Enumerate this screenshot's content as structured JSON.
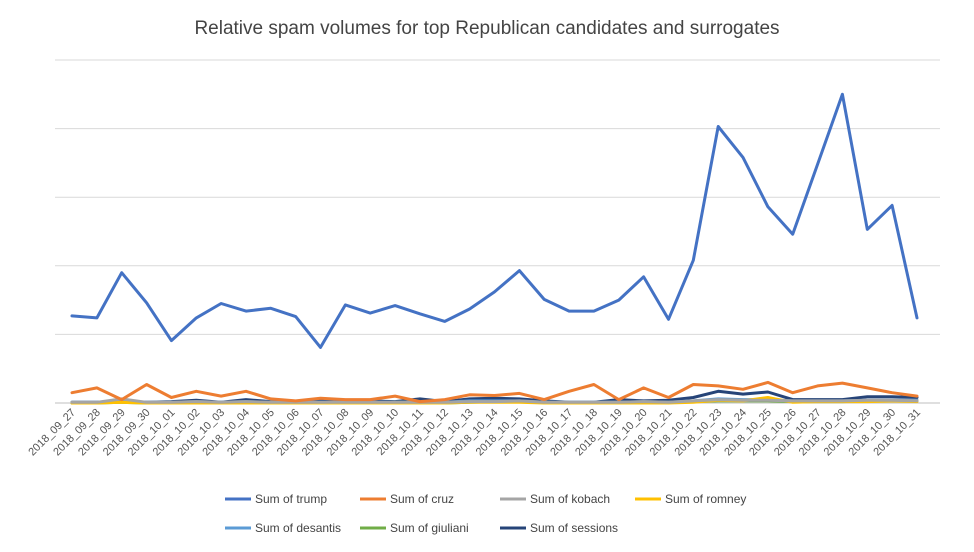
{
  "chart_data": {
    "type": "line",
    "title": "Relative spam volumes for top Republican candidates and surrogates",
    "xlabel": "",
    "ylabel": "",
    "y_tick_labels_shown": false,
    "ylim": [
      0,
      500
    ],
    "grid": true,
    "legend_position": "bottom",
    "categories": [
      "2018_09_27",
      "2018_09_28",
      "2018_09_29",
      "2018_09_30",
      "2018_10_01",
      "2018_10_02",
      "2018_10_03",
      "2018_10_04",
      "2018_10_05",
      "2018_10_06",
      "2018_10_07",
      "2018_10_08",
      "2018_10_09",
      "2018_10_10",
      "2018_10_11",
      "2018_10_12",
      "2018_10_13",
      "2018_10_14",
      "2018_10_15",
      "2018_10_16",
      "2018_10_17",
      "2018_10_18",
      "2018_10_19",
      "2018_10_20",
      "2018_10_21",
      "2018_10_22",
      "2018_10_23",
      "2018_10_24",
      "2018_10_25",
      "2018_10_26",
      "2018_10_27",
      "2018_10_28",
      "2018_10_29",
      "2018_10_30",
      "2018_10_31"
    ],
    "series": [
      {
        "name": "Sum of trump",
        "color": "#4472C4",
        "values": [
          127,
          124,
          190,
          146,
          91,
          124,
          145,
          134,
          138,
          126,
          81,
          143,
          131,
          142,
          130,
          119,
          137,
          162,
          193,
          151,
          134,
          134,
          150,
          184,
          122,
          208,
          403,
          358,
          286,
          246,
          348,
          450,
          253,
          288,
          124
        ]
      },
      {
        "name": "Sum of cruz",
        "color": "#ED7D31",
        "values": [
          15,
          22,
          5,
          27,
          8,
          17,
          10,
          17,
          6,
          3,
          7,
          5,
          5,
          10,
          2,
          5,
          12,
          11,
          14,
          5,
          17,
          27,
          5,
          22,
          8,
          27,
          25,
          20,
          30,
          15,
          25,
          29,
          22,
          15,
          10
        ]
      },
      {
        "name": "Sum of kobach",
        "color": "#A5A5A5",
        "values": [
          1,
          1,
          6,
          1,
          1,
          2,
          1,
          2,
          1,
          1,
          1,
          1,
          1,
          1,
          1,
          1,
          2,
          2,
          3,
          1,
          1,
          1,
          1,
          2,
          1,
          3,
          5,
          4,
          4,
          3,
          3,
          3,
          4,
          4,
          3
        ]
      },
      {
        "name": "Sum of romney",
        "color": "#FFC000",
        "values": [
          0,
          0,
          1,
          0,
          0,
          0,
          0,
          0,
          0,
          0,
          0,
          0,
          0,
          0,
          0,
          0,
          1,
          1,
          1,
          0,
          0,
          0,
          0,
          0,
          0,
          1,
          4,
          3,
          8,
          1,
          2,
          2,
          2,
          3,
          2
        ]
      },
      {
        "name": "Sum of desantis",
        "color": "#5B9BD5",
        "values": [
          1,
          1,
          3,
          1,
          1,
          2,
          1,
          2,
          1,
          1,
          1,
          1,
          1,
          1,
          1,
          1,
          3,
          3,
          3,
          1,
          1,
          1,
          1,
          2,
          1,
          3,
          6,
          5,
          5,
          3,
          3,
          3,
          4,
          4,
          4
        ]
      },
      {
        "name": "Sum of giuliani",
        "color": "#70AD47",
        "values": [
          0,
          0,
          1,
          0,
          0,
          1,
          0,
          1,
          0,
          0,
          0,
          0,
          0,
          1,
          1,
          0,
          1,
          2,
          2,
          1,
          0,
          0,
          1,
          1,
          1,
          2,
          3,
          3,
          3,
          2,
          2,
          2,
          3,
          3,
          3
        ]
      },
      {
        "name": "Sum of sessions",
        "color": "#264478",
        "values": [
          1,
          1,
          2,
          1,
          2,
          4,
          1,
          5,
          2,
          1,
          3,
          4,
          3,
          2,
          6,
          2,
          6,
          7,
          6,
          3,
          1,
          1,
          5,
          3,
          4,
          8,
          17,
          13,
          16,
          5,
          5,
          5,
          9,
          9,
          8
        ]
      }
    ]
  }
}
